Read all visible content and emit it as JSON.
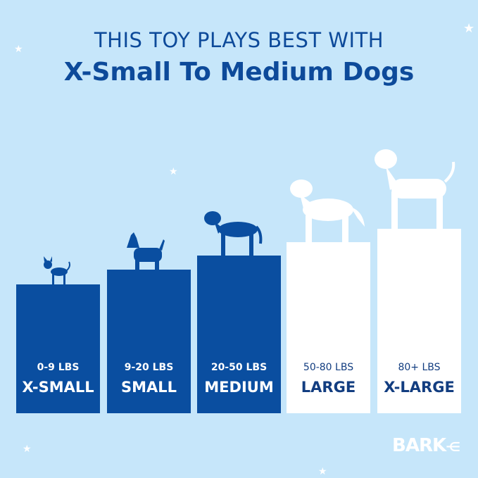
{
  "headline": {
    "line1": "THIS TOY PLAYS BEST WITH",
    "line2": "X-Small To Medium Dogs"
  },
  "sizes": [
    {
      "weight": "0-9 LBS",
      "label": "X-SMALL",
      "recommended": true
    },
    {
      "weight": "9-20 LBS",
      "label": "SMALL",
      "recommended": true
    },
    {
      "weight": "20-50 LBS",
      "label": "MEDIUM",
      "recommended": true
    },
    {
      "weight": "50-80 LBS",
      "label": "LARGE",
      "recommended": false
    },
    {
      "weight": "80+ LBS",
      "label": "X-LARGE",
      "recommended": false
    }
  ],
  "brand": {
    "logo": "BARK"
  },
  "colors": {
    "background": "#c6e6fa",
    "recommended": "#0a4ea0",
    "not_recommended": "#ffffff"
  }
}
